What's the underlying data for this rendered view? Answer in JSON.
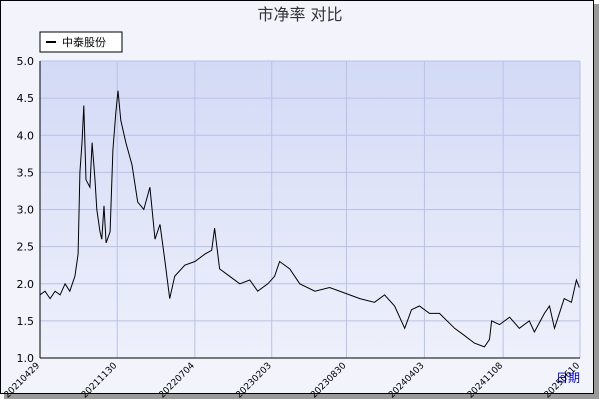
{
  "chart_data": {
    "type": "line",
    "title": "市净率  对比",
    "x_label": "日期",
    "x": [
      "20210429",
      "20210513",
      "20210527",
      "20210610",
      "20210624",
      "20210708",
      "20210721",
      "20210804",
      "20210813",
      "20210818",
      "20210824",
      "20210829",
      "20210904",
      "20210915",
      "20210921",
      "20210929",
      "20211004",
      "20211013",
      "20211018",
      "20211024",
      "20211030",
      "20211110",
      "20211118",
      "20211126",
      "20211202",
      "20211210",
      "20211224",
      "20220110",
      "20220126",
      "20220212",
      "20220301",
      "20220315",
      "20220329",
      "20220412",
      "20220425",
      "20220509",
      "20220606",
      "20220704",
      "20220801",
      "20220820",
      "20220828",
      "20220911",
      "20221009",
      "20221106",
      "20221204",
      "20221226",
      "20230123",
      "20230211",
      "20230225",
      "20230325",
      "20230422",
      "20230603",
      "20230714",
      "20230908",
      "20231006",
      "20231116",
      "20231214",
      "20240111",
      "20240208",
      "20240227",
      "20240320",
      "20240417",
      "20240515",
      "20240626",
      "20240724",
      "20240820",
      "20240917",
      "20241001",
      "20241007",
      "20241029",
      "20241126",
      "20241223",
      "20250120",
      "20250203",
      "20250303",
      "20250317",
      "20250331",
      "20250427",
      "20250517",
      "20250531",
      "20250608"
    ],
    "series": [
      {
        "name": "中泰股份",
        "color": "#000000",
        "values": [
          1.85,
          1.9,
          1.8,
          1.9,
          1.85,
          2.0,
          1.9,
          2.1,
          2.4,
          3.5,
          3.9,
          4.4,
          3.4,
          3.3,
          3.9,
          3.4,
          3.0,
          2.7,
          2.6,
          3.05,
          2.55,
          2.7,
          3.8,
          4.3,
          4.6,
          4.2,
          3.9,
          3.6,
          3.1,
          3.0,
          3.3,
          2.6,
          2.8,
          2.3,
          1.8,
          2.1,
          2.25,
          2.3,
          2.4,
          2.45,
          2.75,
          2.2,
          2.1,
          2.0,
          2.05,
          1.9,
          2.0,
          2.1,
          2.3,
          2.2,
          2.0,
          1.9,
          1.95,
          1.85,
          1.8,
          1.75,
          1.85,
          1.7,
          1.4,
          1.65,
          1.7,
          1.6,
          1.6,
          1.4,
          1.3,
          1.2,
          1.15,
          1.25,
          1.5,
          1.45,
          1.55,
          1.4,
          1.5,
          1.35,
          1.6,
          1.7,
          1.4,
          1.8,
          1.75,
          2.05,
          1.95
        ]
      }
    ],
    "xlim": [
      "20210429",
      "20250610"
    ],
    "xticks": [
      "20210429",
      "20211130",
      "20220704",
      "20230203",
      "20230830",
      "20240403",
      "20241108",
      "20250610"
    ],
    "ylim": [
      1,
      5
    ],
    "yticks": [
      {
        "value": 1,
        "label": "1.0"
      },
      1.5,
      {
        "value": 2,
        "label": "2.0"
      },
      2.5,
      {
        "value": 3,
        "label": "3.0"
      },
      3.5,
      {
        "value": 4,
        "label": "4.0"
      },
      4.5,
      {
        "value": 5,
        "label": "5.0"
      }
    ],
    "grid": true,
    "legend": "top-left"
  }
}
